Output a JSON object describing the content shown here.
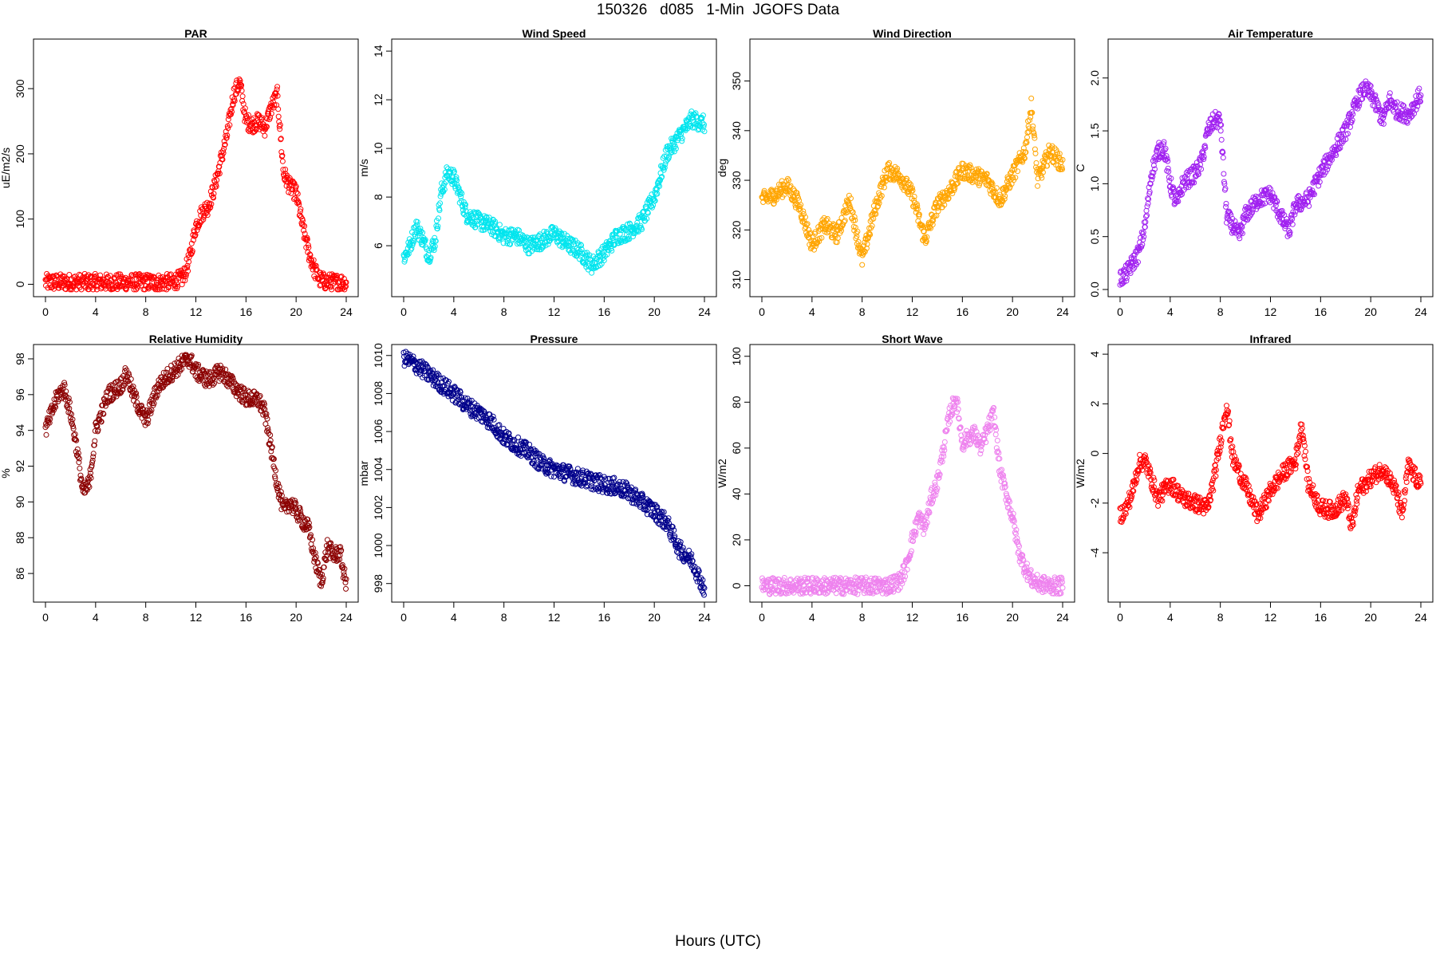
{
  "figure": {
    "title": "150326   d085   1-Min  JGOFS Data",
    "xlabel": "Hours (UTC)"
  },
  "chart_data": [
    {
      "type": "scatter",
      "title": "PAR",
      "ylabel": "uE/m2/s",
      "color": "#ff0000",
      "xlim": [
        0,
        24
      ],
      "ylim": [
        -8,
        365
      ],
      "xticks": [
        0,
        4,
        8,
        12,
        16,
        20,
        24
      ],
      "yticks": [
        0,
        100,
        200,
        300
      ],
      "x": [
        0,
        2,
        4,
        6,
        8,
        10,
        11,
        11.5,
        12,
        12.5,
        13,
        13.5,
        14,
        14.5,
        15,
        15.5,
        16,
        16.5,
        17,
        17.5,
        18,
        18.5,
        19,
        19.5,
        20,
        20.5,
        21,
        21.5,
        22,
        23,
        24
      ],
      "values": [
        3,
        3,
        3,
        3,
        3,
        3,
        10,
        40,
        90,
        110,
        120,
        150,
        190,
        230,
        290,
        310,
        250,
        245,
        250,
        240,
        270,
        290,
        170,
        150,
        140,
        90,
        50,
        20,
        5,
        3,
        3
      ]
    },
    {
      "type": "scatter",
      "title": "Wind Speed",
      "ylabel": "m/s",
      "color": "#00e5ee",
      "xlim": [
        0,
        24
      ],
      "ylim": [
        4.2,
        14.2
      ],
      "xticks": [
        0,
        4,
        8,
        12,
        16,
        20,
        24
      ],
      "yticks": [
        6,
        8,
        10,
        12,
        14
      ],
      "x": [
        0,
        0.5,
        1,
        1.5,
        2,
        2.5,
        3,
        3.5,
        4,
        5,
        6,
        7,
        8,
        9,
        10,
        11,
        12,
        13,
        14,
        15,
        16,
        17,
        18,
        19,
        20,
        21,
        22,
        23,
        24
      ],
      "values": [
        5.5,
        6.0,
        6.8,
        6.3,
        5.6,
        6.2,
        8.2,
        9.0,
        8.8,
        7.3,
        7.0,
        6.8,
        6.4,
        6.4,
        6.0,
        6.2,
        6.5,
        6.1,
        5.8,
        5.2,
        5.7,
        6.4,
        6.6,
        7.0,
        8.0,
        9.8,
        10.5,
        11.2,
        11.0
      ]
    },
    {
      "type": "scatter",
      "title": "Wind Direction",
      "ylabel": "deg",
      "color": "#ffa500",
      "xlim": [
        0,
        24
      ],
      "ylim": [
        308,
        357
      ],
      "xticks": [
        0,
        4,
        8,
        12,
        16,
        20,
        24
      ],
      "yticks": [
        310,
        320,
        330,
        340,
        350
      ],
      "x": [
        0,
        1,
        2,
        3,
        4,
        5,
        6,
        7,
        8,
        9,
        10,
        11,
        12,
        13,
        14,
        15,
        16,
        17,
        18,
        19,
        20,
        21,
        21.5,
        22,
        23,
        24
      ],
      "values": [
        326,
        327,
        329,
        325,
        317,
        321,
        319,
        326,
        314,
        324,
        332,
        331,
        327,
        318,
        325,
        328,
        332,
        331,
        330,
        326,
        331,
        336,
        345,
        330,
        336,
        333
      ]
    },
    {
      "type": "scatter",
      "title": "Air Temperature",
      "ylabel": "C",
      "color": "#a020f0",
      "xlim": [
        0,
        24
      ],
      "ylim": [
        0.0,
        2.3
      ],
      "xticks": [
        0,
        4,
        8,
        12,
        16,
        20,
        24
      ],
      "yticks": [
        0.0,
        0.5,
        1.0,
        1.5,
        2.0
      ],
      "x": [
        0,
        0.5,
        1,
        1.5,
        2,
        2.5,
        3,
        3.5,
        4,
        4.5,
        5,
        5.5,
        6,
        6.5,
        7,
        7.5,
        8,
        8.5,
        9,
        9.5,
        10,
        11,
        12,
        13,
        13.5,
        14,
        15,
        16,
        17,
        18,
        19,
        19.5,
        20,
        21,
        21.5,
        22,
        23,
        24
      ],
      "values": [
        0.1,
        0.15,
        0.25,
        0.35,
        0.6,
        1.1,
        1.3,
        1.35,
        1.0,
        0.8,
        1.0,
        1.05,
        1.1,
        1.2,
        1.5,
        1.6,
        1.6,
        0.7,
        0.6,
        0.5,
        0.7,
        0.85,
        0.9,
        0.65,
        0.55,
        0.8,
        0.85,
        1.1,
        1.3,
        1.5,
        1.8,
        1.9,
        1.85,
        1.6,
        1.8,
        1.7,
        1.65,
        1.85
      ]
    },
    {
      "type": "scatter",
      "title": "Relative Humidity",
      "ylabel": "%",
      "color": "#8b0000",
      "xlim": [
        0,
        24
      ],
      "ylim": [
        84.8,
        98.4
      ],
      "xticks": [
        0,
        4,
        8,
        12,
        16,
        20,
        24
      ],
      "yticks": [
        86,
        88,
        90,
        92,
        94,
        96,
        98
      ],
      "x": [
        0,
        0.5,
        1,
        1.5,
        2,
        2.5,
        3,
        3.5,
        4,
        5,
        6,
        6.5,
        7,
        8,
        8.5,
        9,
        10,
        11,
        11.5,
        12,
        13,
        14,
        15,
        16,
        17,
        17.5,
        18,
        18.5,
        19,
        19.5,
        20,
        21,
        21.5,
        22,
        22.5,
        23,
        23.5,
        24
      ],
      "values": [
        94,
        95,
        96,
        96.3,
        95,
        93,
        90.5,
        91,
        94,
        96,
        96.5,
        97.2,
        96,
        94.5,
        95.5,
        96.5,
        97.2,
        97.8,
        98,
        97.3,
        96.8,
        97.3,
        96.5,
        95.8,
        95.7,
        95,
        93,
        91,
        89.5,
        90,
        89.5,
        88.5,
        86.8,
        85.5,
        87.5,
        87,
        87.2,
        85.3
      ]
    },
    {
      "type": "scatter",
      "title": "Pressure",
      "ylabel": "mbar",
      "color": "#00008b",
      "xlim": [
        0,
        24
      ],
      "ylim": [
        997.4,
        1010.2
      ],
      "xticks": [
        0,
        4,
        8,
        12,
        16,
        20,
        24
      ],
      "yticks": [
        998,
        1000,
        1002,
        1004,
        1006,
        1008,
        1010
      ],
      "x": [
        0,
        1,
        2,
        3,
        4,
        5,
        6,
        7,
        8,
        9,
        10,
        11,
        12,
        13,
        14,
        15,
        16,
        17,
        18,
        19,
        20,
        21,
        22,
        23,
        24
      ],
      "values": [
        1009.9,
        1009.5,
        1009,
        1008.5,
        1008,
        1007.4,
        1007,
        1006.5,
        1005.7,
        1005.3,
        1004.9,
        1004.3,
        1004,
        1003.8,
        1003.6,
        1003.4,
        1003.2,
        1003.1,
        1002.8,
        1002.3,
        1001.8,
        1001.2,
        999.8,
        999.2,
        997.7
      ]
    },
    {
      "type": "scatter",
      "title": "Short Wave",
      "ylabel": "W/m2",
      "color": "#ee82ee",
      "xlim": [
        0,
        24
      ],
      "ylim": [
        -4,
        102
      ],
      "xticks": [
        0,
        4,
        8,
        12,
        16,
        20,
        24
      ],
      "yticks": [
        0,
        20,
        40,
        60,
        80,
        100
      ],
      "x": [
        0,
        2,
        4,
        6,
        8,
        10,
        11,
        11.5,
        12,
        12.5,
        13,
        13.5,
        14,
        14.5,
        15,
        15.5,
        16,
        16.5,
        17,
        17.5,
        18,
        18.5,
        19,
        19.5,
        20,
        20.5,
        21,
        21.5,
        22,
        23,
        24
      ],
      "values": [
        0,
        0,
        0,
        0,
        0,
        0,
        2,
        8,
        20,
        30,
        25,
        38,
        45,
        60,
        75,
        82,
        62,
        65,
        66,
        60,
        68,
        75,
        50,
        40,
        30,
        15,
        8,
        3,
        1,
        0,
        0
      ]
    },
    {
      "type": "scatter",
      "title": "Infrared",
      "ylabel": "W/m2",
      "color": "#ff0000",
      "xlim": [
        0,
        24
      ],
      "ylim": [
        -5.7,
        4.1
      ],
      "xticks": [
        0,
        4,
        8,
        12,
        16,
        20,
        24
      ],
      "yticks": [
        -4,
        -2,
        0,
        2,
        4
      ],
      "x": [
        0,
        0.5,
        1,
        1.5,
        2,
        3,
        4,
        5,
        6,
        7,
        7.5,
        8,
        8.5,
        9,
        10,
        11,
        12,
        13,
        14,
        14.5,
        15,
        16,
        17,
        18,
        18.5,
        19,
        20,
        21,
        22,
        22.5,
        23,
        24
      ],
      "values": [
        -2.5,
        -2.2,
        -1.5,
        -0.4,
        -0.3,
        -1.8,
        -1.2,
        -1.8,
        -2.0,
        -2.2,
        -1.0,
        0.5,
        2.0,
        -0.2,
        -1.3,
        -2.5,
        -1.5,
        -0.8,
        -0.3,
        1.2,
        -1.2,
        -2.2,
        -2.3,
        -1.8,
        -3.0,
        -1.5,
        -1.0,
        -0.6,
        -1.5,
        -2.5,
        -0.5,
        -1.3
      ]
    }
  ]
}
